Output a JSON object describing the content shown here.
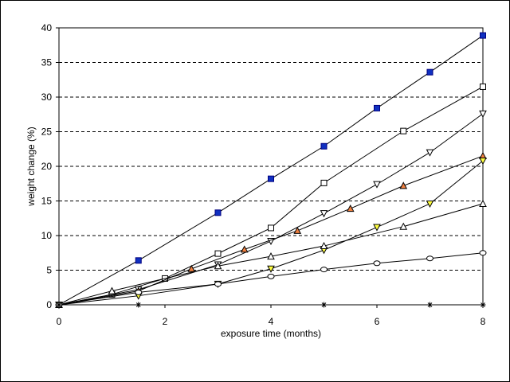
{
  "chart_data": {
    "type": "line",
    "title": "",
    "xlabel": "exposure time (months)",
    "ylabel": "weight change (%)",
    "xlim": [
      0,
      8
    ],
    "ylim": [
      0,
      40
    ],
    "xticks": [
      0,
      2,
      4,
      6,
      8
    ],
    "yticks": [
      0,
      5,
      10,
      15,
      20,
      25,
      30,
      35,
      40
    ],
    "grid": "horizontal dashed",
    "legend": "none",
    "series": [
      {
        "marker": "filled-square",
        "color": "#0000aa",
        "fill": "#1030c0",
        "x": [
          0,
          1.5,
          3,
          4,
          5,
          6,
          7,
          8
        ],
        "y": [
          0,
          6.4,
          13.3,
          18.2,
          22.9,
          28.4,
          33.6,
          38.9
        ]
      },
      {
        "marker": "open-square",
        "color": "#000000",
        "fill": "#ffffff",
        "x": [
          0,
          1,
          2,
          3,
          4,
          5,
          6.5,
          8
        ],
        "y": [
          0,
          1.5,
          3.8,
          7.4,
          11.1,
          17.6,
          25.1,
          31.5
        ]
      },
      {
        "marker": "open-triangle-down",
        "color": "#000000",
        "fill": "#ffffff",
        "x": [
          0,
          1.5,
          3,
          4,
          5,
          6,
          7,
          8
        ],
        "y": [
          0,
          2.2,
          5.8,
          9.2,
          13.2,
          17.4,
          22.0,
          27.6
        ]
      },
      {
        "marker": "orange-triangle-up",
        "color": "#000000",
        "fill": "#f08040",
        "x": [
          0,
          1.5,
          2.5,
          3.5,
          4.5,
          5.5,
          6.5,
          8
        ],
        "y": [
          0,
          2.0,
          5.2,
          8.0,
          10.7,
          13.9,
          17.2,
          21.5
        ]
      },
      {
        "marker": "yellow-triangle-down",
        "color": "#000000",
        "fill": "#ffff40",
        "x": [
          0,
          1.5,
          3,
          4,
          5,
          6,
          7,
          8
        ],
        "y": [
          0,
          1.3,
          3.0,
          5.2,
          7.9,
          11.2,
          14.6,
          20.8
        ]
      },
      {
        "marker": "open-triangle-up",
        "color": "#000000",
        "fill": "#ffffff",
        "x": [
          0,
          1,
          3,
          4,
          5,
          6.5,
          8
        ],
        "y": [
          0,
          2.0,
          5.6,
          7.0,
          8.5,
          11.3,
          14.6
        ]
      },
      {
        "marker": "open-circle",
        "color": "#000000",
        "fill": "#ffffff",
        "x": [
          0,
          1.5,
          3,
          4,
          5,
          6,
          7,
          8
        ],
        "y": [
          0,
          1.8,
          3.0,
          4.1,
          5.1,
          6.0,
          6.7,
          7.5
        ]
      },
      {
        "marker": "star",
        "color": "#000000",
        "fill": "#000000",
        "x": [
          0,
          1.5,
          5,
          7,
          8
        ],
        "y": [
          0,
          0,
          0,
          0,
          0
        ]
      }
    ]
  }
}
